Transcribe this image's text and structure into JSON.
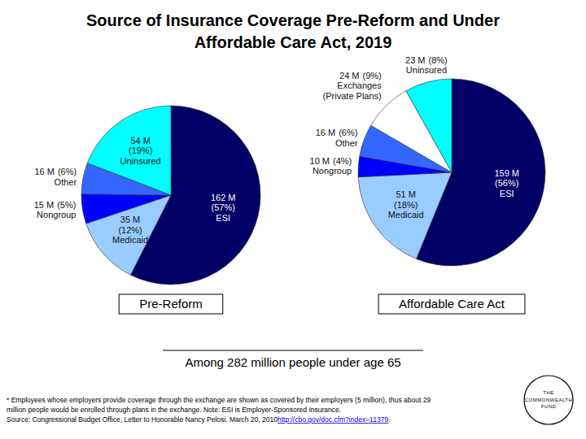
{
  "title": "Source of Insurance Coverage Pre-Reform and Under Affordable Care Act, 2019",
  "chart_data": [
    {
      "type": "pie",
      "title": "Pre-Reform",
      "categories": [
        "ESI",
        "Medicaid",
        "Nongroup",
        "Other",
        "Uninsured"
      ],
      "values": [
        162,
        35,
        15,
        16,
        54
      ],
      "value_labels": [
        "162 M",
        "35 M",
        "15 M",
        "16 M",
        "54 M"
      ],
      "percents": [
        57,
        12,
        5,
        6,
        19
      ],
      "percent_labels": [
        "(57%)",
        "(12%)",
        "(5%)",
        "(6%)",
        "(19%)"
      ],
      "colors": [
        "#000066",
        "#99ccff",
        "#0000ff",
        "#3366ff",
        "#00ffff"
      ],
      "data_labels": true
    },
    {
      "type": "pie",
      "title": "Affordable Care Act",
      "categories": [
        "ESI",
        "Medicaid",
        "Nongroup",
        "Other",
        "Exchanges (Private Plans)",
        "Uninsured"
      ],
      "values": [
        159,
        51,
        10,
        16,
        24,
        23
      ],
      "value_labels": [
        "159 M",
        "51 M",
        "10 M",
        "16 M",
        "24 M",
        "23 M"
      ],
      "percents": [
        56,
        18,
        4,
        6,
        9,
        8
      ],
      "percent_labels": [
        "(56%)",
        "(18%)",
        "(4%)",
        "(6%)",
        "(9%)",
        "(8%)"
      ],
      "colors": [
        "#000066",
        "#99ccff",
        "#0000ff",
        "#3366ff",
        "#ffffff",
        "#00ffff"
      ],
      "data_labels": true
    }
  ],
  "note": "Among 282 million people under age 65",
  "footnote": [
    "* Employees whose employers provide coverage through the exchange are shown as covered by their employers (5 million), thus about 29",
    "million people would be enrolled through plans in the exchange. Note: ESI is Employer-Sponsored Insurance."
  ],
  "source": {
    "text": "Source: Congressional Budget Office, Letter to Honorable Nancy Pelosi, March 20, 2010",
    "link": "http://cbo.gov/doc.cfm?index=11379",
    "end": "."
  },
  "logo": [
    "THE",
    "COMMONWEALTH",
    "FUND"
  ]
}
